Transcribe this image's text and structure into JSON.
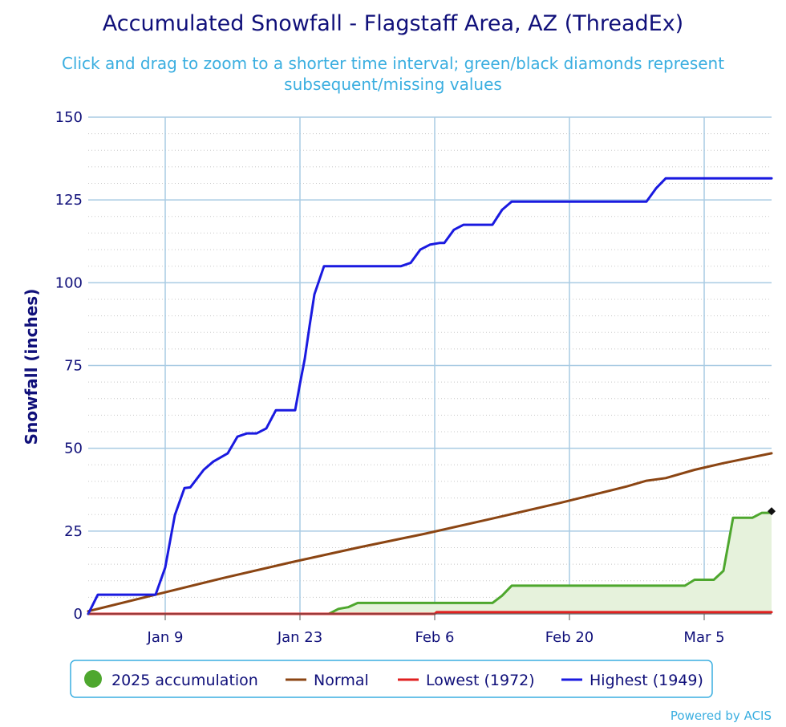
{
  "chart_data": {
    "type": "line",
    "title": "Accumulated Snowfall - Flagstaff Area, AZ (ThreadEx)",
    "subtitle_lines": [
      "Click and drag to zoom to a shorter time interval; green/black diamonds represent",
      "subsequent/missing values"
    ],
    "ylabel": "Snowfall (inches)",
    "xlabel": "",
    "ylim": [
      0,
      150
    ],
    "yticks": [
      0,
      25,
      50,
      75,
      100,
      125,
      150
    ],
    "xlim": [
      1,
      72
    ],
    "xtick_days": [
      9,
      23,
      37,
      51,
      65
    ],
    "xtick_labels": [
      "Jan 9",
      "Jan 23",
      "Feb 6",
      "Feb 20",
      "Mar 5"
    ],
    "grid": true,
    "legend_position": "bottom",
    "credit": "Powered by ACIS",
    "series": [
      {
        "name": "2025 accumulation",
        "color": "#4ea72e",
        "fill": "#e6f2dc",
        "points": [
          [
            1,
            0
          ],
          [
            26,
            0
          ],
          [
            27,
            1.5
          ],
          [
            28,
            2
          ],
          [
            29,
            3.3
          ],
          [
            30,
            3.3
          ],
          [
            39,
            3.3
          ],
          [
            43,
            3.3
          ],
          [
            44,
            5.5
          ],
          [
            45,
            8.5
          ],
          [
            53,
            8.5
          ],
          [
            63,
            8.5
          ],
          [
            64,
            10.3
          ],
          [
            66,
            10.3
          ],
          [
            67,
            13
          ],
          [
            68,
            29
          ],
          [
            70,
            29
          ],
          [
            71,
            30.5
          ],
          [
            72,
            30.5
          ]
        ],
        "missing_marker": [
          72,
          31
        ]
      },
      {
        "name": "Normal",
        "color": "#8b4513",
        "points": [
          [
            1,
            0.8
          ],
          [
            8,
            5.8
          ],
          [
            15,
            10.8
          ],
          [
            22,
            15.5
          ],
          [
            29,
            20
          ],
          [
            36,
            24.2
          ],
          [
            43,
            28.8
          ],
          [
            50,
            33.5
          ],
          [
            57,
            38.5
          ],
          [
            59,
            40.2
          ],
          [
            61,
            41
          ],
          [
            64,
            43.5
          ],
          [
            67,
            45.5
          ],
          [
            72,
            48.5
          ]
        ]
      },
      {
        "name": "Lowest (1972)",
        "color": "#e02020",
        "points": [
          [
            1,
            0
          ],
          [
            37,
            0
          ],
          [
            37.2,
            0.5
          ],
          [
            72,
            0.5
          ]
        ]
      },
      {
        "name": "Highest (1949)",
        "color": "#1a1ae0",
        "points": [
          [
            1,
            0
          ],
          [
            2,
            5.8
          ],
          [
            8,
            5.8
          ],
          [
            9,
            14
          ],
          [
            10,
            29.8
          ],
          [
            11,
            38
          ],
          [
            11.6,
            38.2
          ],
          [
            13,
            43.5
          ],
          [
            14,
            46
          ],
          [
            15.5,
            48.5
          ],
          [
            16.5,
            53.5
          ],
          [
            17.5,
            54.5
          ],
          [
            18.5,
            54.5
          ],
          [
            19.5,
            56
          ],
          [
            20.5,
            61.5
          ],
          [
            22.5,
            61.5
          ],
          [
            23,
            69.5
          ],
          [
            23.5,
            77
          ],
          [
            24,
            87
          ],
          [
            24.5,
            96.5
          ],
          [
            25.5,
            105
          ],
          [
            32,
            105
          ],
          [
            33.5,
            105
          ],
          [
            34.5,
            106
          ],
          [
            35.5,
            110
          ],
          [
            36.5,
            111.5
          ],
          [
            37.5,
            112
          ],
          [
            38,
            112
          ],
          [
            39,
            116
          ],
          [
            40,
            117.5
          ],
          [
            42.5,
            117.5
          ],
          [
            43,
            117.5
          ],
          [
            44,
            122
          ],
          [
            45,
            124.5
          ],
          [
            56,
            124.5
          ],
          [
            59,
            124.5
          ],
          [
            60,
            128.5
          ],
          [
            61,
            131.5
          ],
          [
            72,
            131.5
          ]
        ]
      }
    ]
  },
  "legend": {
    "items": [
      {
        "label": "2025 accumulation",
        "symbol": "circle",
        "color": "#4ea72e"
      },
      {
        "label": "Normal",
        "symbol": "line",
        "color": "#8b4513"
      },
      {
        "label": "Lowest (1972)",
        "symbol": "line",
        "color": "#e02020"
      },
      {
        "label": "Highest (1949)",
        "symbol": "line",
        "color": "#1a1ae0"
      }
    ]
  }
}
